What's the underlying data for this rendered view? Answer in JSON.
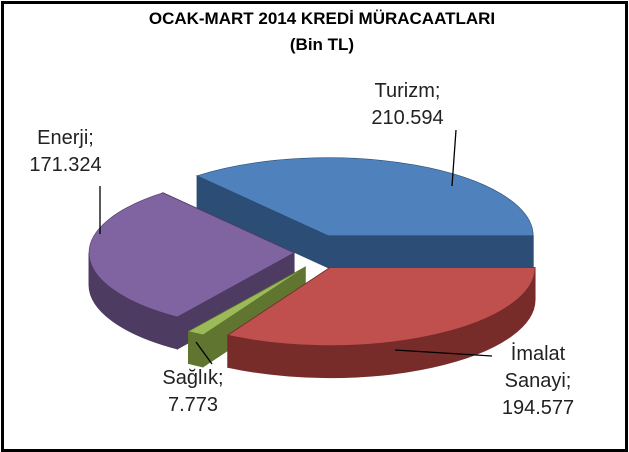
{
  "chart_data": {
    "type": "pie3d",
    "title": "OCAK-MART 2014 KREDİ MÜRACAATLARI",
    "subtitle": "(Bin TL)",
    "categories": [
      "Turizm;",
      "İmalat Sanayi;",
      "Sağlık;",
      "Enerji;"
    ],
    "values": [
      210594,
      194577,
      7773,
      171324
    ],
    "value_labels": [
      "210.594",
      "194.577",
      "7.773",
      "171.324"
    ],
    "colors": [
      "#4f81bd",
      "#c0504d",
      "#9bbb59",
      "#8064a2"
    ],
    "side_colors": [
      "#2c4d75",
      "#772c2a",
      "#5f7530",
      "#4d3b62"
    ]
  }
}
